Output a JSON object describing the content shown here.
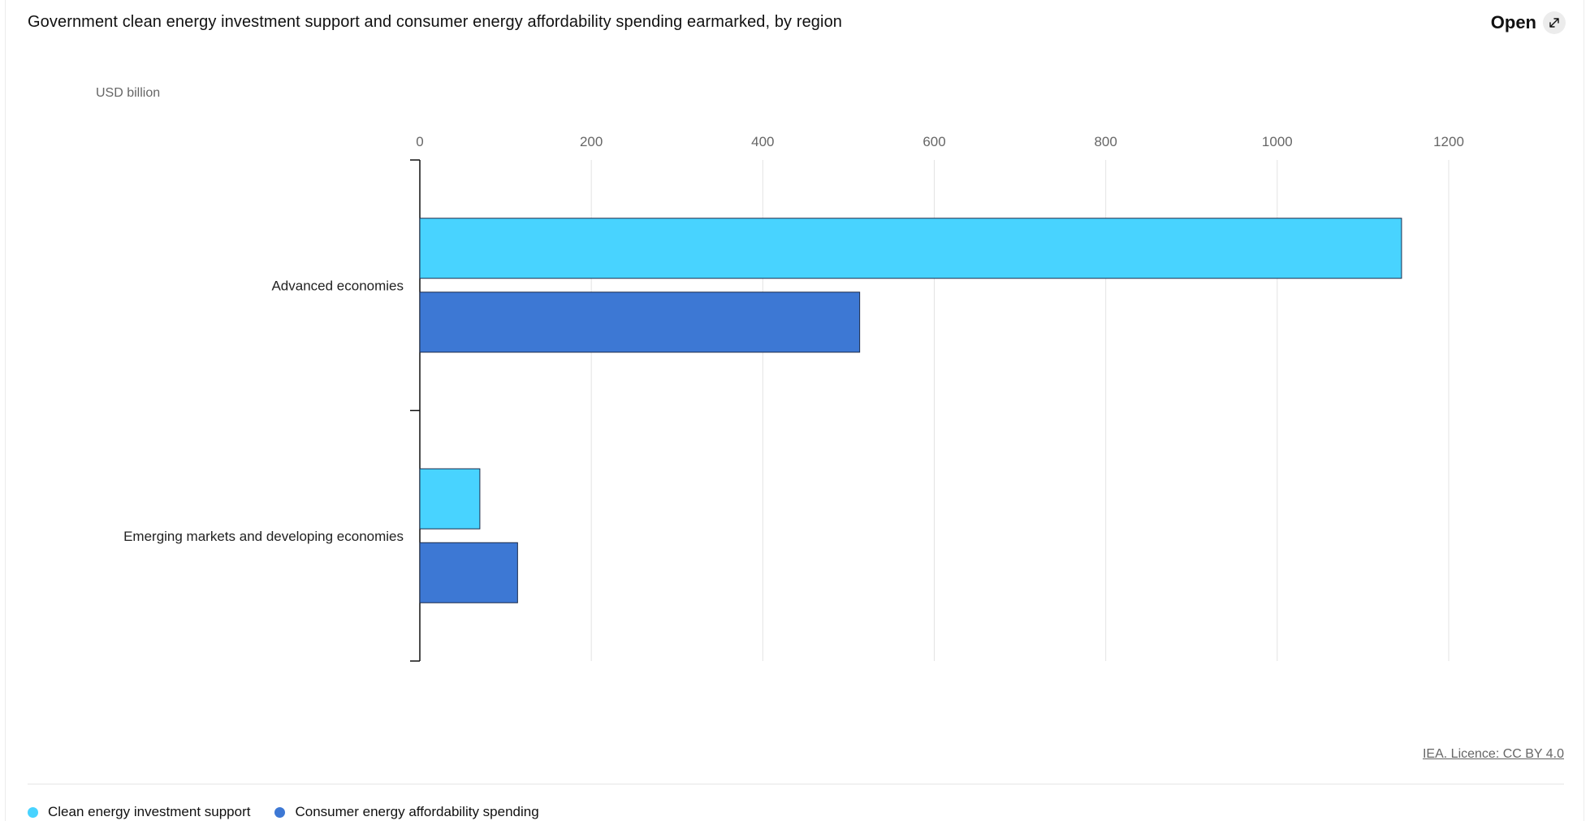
{
  "header": {
    "title": "Government clean energy investment support and consumer energy affordability spending earmarked, by region",
    "open_label": "Open"
  },
  "footer": {
    "credit": "IEA. Licence: CC BY 4.0"
  },
  "colors": {
    "clean": "#48d3ff",
    "consumer": "#3d78d4",
    "bar_stroke": "#1c2b4a",
    "grid": "#e3e3e3",
    "axis": "#111111",
    "tick_text": "#666666"
  },
  "chart_data": {
    "type": "bar",
    "orientation": "horizontal",
    "title": "Government clean energy investment support and consumer energy affordability spending earmarked, by region",
    "unit_label": "USD billion",
    "xlabel": "USD billion",
    "ylabel": "",
    "xlim": [
      0,
      1200
    ],
    "xticks": [
      0,
      200,
      400,
      600,
      800,
      1000,
      1200
    ],
    "grid": true,
    "legend_position": "bottom-left",
    "categories": [
      "Advanced economies",
      "Emerging markets and developing economies"
    ],
    "series": [
      {
        "name": "Clean energy investment support",
        "color_key": "clean",
        "values": [
          1145,
          70
        ]
      },
      {
        "name": "Consumer energy affordability spending",
        "color_key": "consumer",
        "values": [
          513,
          114
        ]
      }
    ]
  }
}
